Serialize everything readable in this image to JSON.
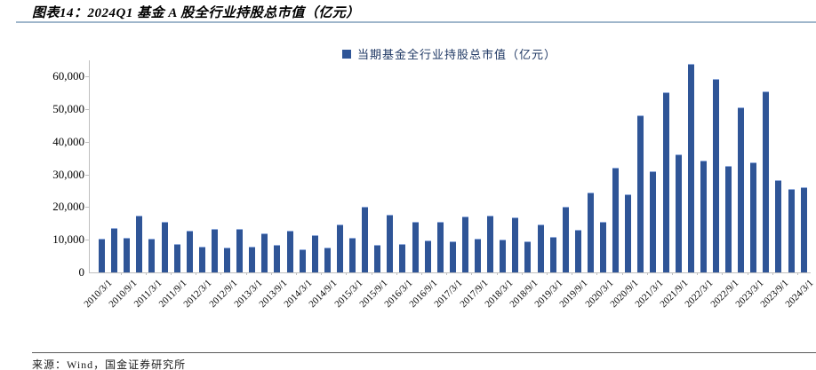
{
  "figure": {
    "title": "图表14：2024Q1 基金 A 股全行业持股总市值（亿元）",
    "source": "来源：Wind，国金证券研究所"
  },
  "chart_data": {
    "type": "bar",
    "title": "",
    "legend": [
      "当期基金全行业持股总市值（亿元）"
    ],
    "legend_position": "top-center",
    "grid": false,
    "bar_color": "#2F5597",
    "ylim": [
      0,
      65000
    ],
    "y_ticks": [
      0,
      10000,
      20000,
      30000,
      40000,
      50000,
      60000
    ],
    "y_tick_labels": [
      "0",
      "10,000",
      "20,000",
      "30,000",
      "40,000",
      "50,000",
      "60,000"
    ],
    "x_tick_labels": [
      "2010/3/1",
      "2010/9/1",
      "2011/3/1",
      "2011/9/1",
      "2012/3/1",
      "2012/9/1",
      "2013/3/1",
      "2013/9/1",
      "2014/3/1",
      "2014/9/1",
      "2015/3/1",
      "2015/9/1",
      "2016/3/1",
      "2016/9/1",
      "2017/3/1",
      "2017/9/1",
      "2018/3/1",
      "2018/9/1",
      "2019/3/1",
      "2019/9/1",
      "2020/3/1",
      "2020/9/1",
      "2021/3/1",
      "2021/9/1",
      "2022/3/1",
      "2022/9/1",
      "2023/3/1",
      "2023/9/1",
      "2024/3/1"
    ],
    "categories": [
      "2010/3/1",
      "2010/6/1",
      "2010/9/1",
      "2010/12/1",
      "2011/3/1",
      "2011/6/1",
      "2011/9/1",
      "2011/12/1",
      "2012/3/1",
      "2012/6/1",
      "2012/9/1",
      "2012/12/1",
      "2013/3/1",
      "2013/6/1",
      "2013/9/1",
      "2013/12/1",
      "2014/3/1",
      "2014/6/1",
      "2014/9/1",
      "2014/12/1",
      "2015/3/1",
      "2015/6/1",
      "2015/9/1",
      "2015/12/1",
      "2016/3/1",
      "2016/6/1",
      "2016/9/1",
      "2016/12/1",
      "2017/3/1",
      "2017/6/1",
      "2017/9/1",
      "2017/12/1",
      "2018/3/1",
      "2018/6/1",
      "2018/9/1",
      "2018/12/1",
      "2019/3/1",
      "2019/6/1",
      "2019/9/1",
      "2019/12/1",
      "2020/3/1",
      "2020/6/1",
      "2020/9/1",
      "2020/12/1",
      "2021/3/1",
      "2021/6/1",
      "2021/9/1",
      "2021/12/1",
      "2022/3/1",
      "2022/6/1",
      "2022/9/1",
      "2022/12/1",
      "2023/3/1",
      "2023/6/1",
      "2023/9/1",
      "2023/12/1",
      "2024/3/1"
    ],
    "values": [
      10400,
      13700,
      10500,
      17400,
      10300,
      15400,
      8700,
      12800,
      8000,
      13200,
      7500,
      13300,
      7800,
      12100,
      8400,
      12800,
      7000,
      11500,
      7600,
      14800,
      10700,
      20000,
      8500,
      17700,
      8700,
      15400,
      9700,
      15500,
      9600,
      17200,
      10300,
      17400,
      10200,
      17000,
      9600,
      14700,
      11000,
      20000,
      13000,
      24500,
      15500,
      32000,
      24000,
      48200,
      31000,
      55100,
      36300,
      63900,
      34200,
      59400,
      32600,
      50500,
      33800,
      55400,
      28300,
      25600,
      26100
    ]
  }
}
